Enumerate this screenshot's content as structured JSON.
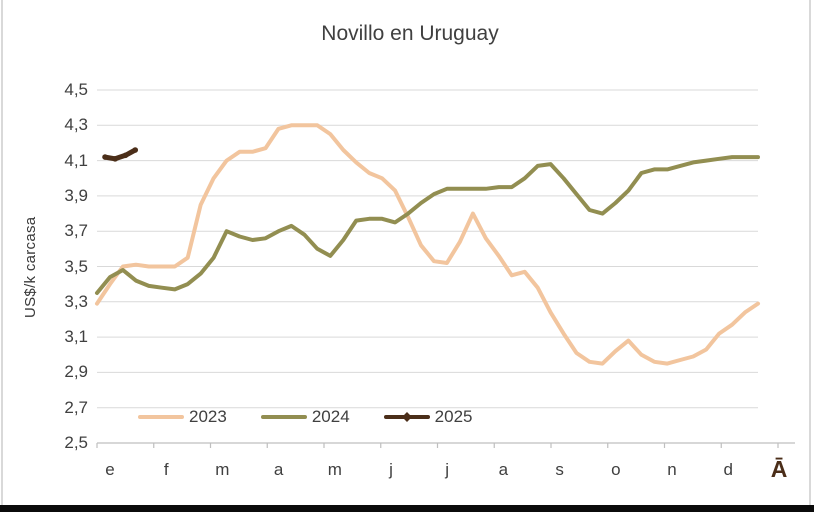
{
  "chart_data": {
    "type": "line",
    "title": "Novillo en Uruguay",
    "ylabel": "US$/k carcasa",
    "ylim": [
      2.5,
      4.5
    ],
    "y_tick_step": 0.2,
    "y_tick_labels": [
      "2,5",
      "2,7",
      "2,9",
      "3,1",
      "3,3",
      "3,5",
      "3,7",
      "3,9",
      "4,1",
      "4,3",
      "4,5"
    ],
    "x_tick_labels": [
      "e",
      "f",
      "m",
      "a",
      "m",
      "j",
      "j",
      "a",
      "s",
      "o",
      "n",
      "d"
    ],
    "x_extra_label": "Ā",
    "grid": true,
    "legend_position": "bottom-left",
    "x_count": 52,
    "series": [
      {
        "name": "2023",
        "color": "#F2C59E",
        "values": [
          3.29,
          3.4,
          3.5,
          3.51,
          3.5,
          3.5,
          3.5,
          3.55,
          3.85,
          4.0,
          4.1,
          4.15,
          4.15,
          4.17,
          4.28,
          4.3,
          4.3,
          4.3,
          4.25,
          4.16,
          4.09,
          4.03,
          4.0,
          3.93,
          3.78,
          3.62,
          3.53,
          3.52,
          3.64,
          3.8,
          3.66,
          3.56,
          3.45,
          3.47,
          3.38,
          3.24,
          3.12,
          3.01,
          2.96,
          2.95,
          3.02,
          3.08,
          3.0,
          2.96,
          2.95,
          2.97,
          2.99,
          3.03,
          3.12,
          3.17,
          3.24,
          3.29
        ]
      },
      {
        "name": "2024",
        "color": "#928E51",
        "values": [
          3.35,
          3.44,
          3.48,
          3.42,
          3.39,
          3.38,
          3.37,
          3.4,
          3.46,
          3.55,
          3.7,
          3.67,
          3.65,
          3.66,
          3.7,
          3.73,
          3.68,
          3.6,
          3.56,
          3.65,
          3.76,
          3.77,
          3.77,
          3.75,
          3.8,
          3.86,
          3.91,
          3.94,
          3.94,
          3.94,
          3.94,
          3.95,
          3.95,
          4.0,
          4.07,
          4.08,
          4.0,
          3.91,
          3.82,
          3.8,
          3.86,
          3.93,
          4.03,
          4.05,
          4.05,
          4.07,
          4.09,
          4.1,
          4.11,
          4.12,
          4.12,
          4.12
        ]
      },
      {
        "name": "2025",
        "color": "#4B2E19",
        "marker": true,
        "x": [
          0.62,
          1.4,
          2.2,
          2.95
        ],
        "values": [
          4.12,
          4.11,
          4.13,
          4.16
        ]
      }
    ]
  },
  "colors": {
    "title_text": "#404040",
    "axis_text": "#404040",
    "gridline": "#D9D9D9",
    "axis_line": "#BFBFBF",
    "extra_label": "#4B2E19",
    "window_bottom_bar": "#0B0B0B",
    "window_edge": "#D9D9D9"
  }
}
